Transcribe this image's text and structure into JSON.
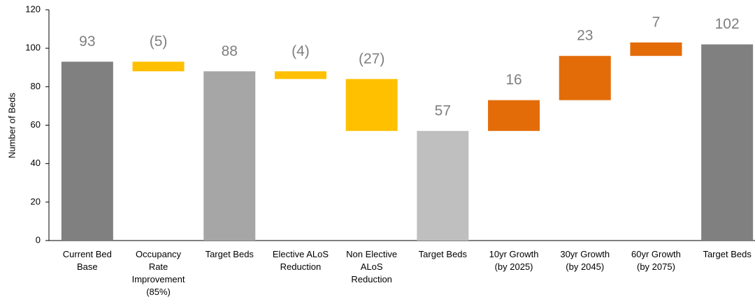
{
  "chart_data": {
    "type": "waterfall",
    "ylabel": "Number of Beds",
    "categories": [
      "Current Bed Base",
      "Occupancy Rate Improvement (85%)",
      "Target Beds",
      "Elective ALoS Reduction",
      "Non Elective ALoS Reduction",
      "Target Beds",
      "10yr Growth (by 2025)",
      "30yr Growth (by 2045)",
      "60yr Growth (by 2075)",
      "Target Beds"
    ],
    "measure": [
      "total",
      "relative",
      "total",
      "relative",
      "relative",
      "total",
      "relative",
      "relative",
      "relative",
      "total"
    ],
    "values": [
      93,
      -5,
      88,
      -4,
      -27,
      57,
      16,
      23,
      7,
      102
    ],
    "value_labels": [
      "93",
      "(5)",
      "88",
      "(4)",
      "(27)",
      "57",
      "16",
      "23",
      "7",
      "102"
    ],
    "colors": [
      "#808080",
      "#ffc000",
      "#a6a6a6",
      "#ffc000",
      "#ffc000",
      "#bfbfbf",
      "#e36c09",
      "#e36c09",
      "#e36c09",
      "#808080"
    ],
    "ylim": [
      0,
      120
    ],
    "yticks": [
      0,
      20,
      40,
      60,
      80,
      100,
      120
    ],
    "grid": false
  }
}
